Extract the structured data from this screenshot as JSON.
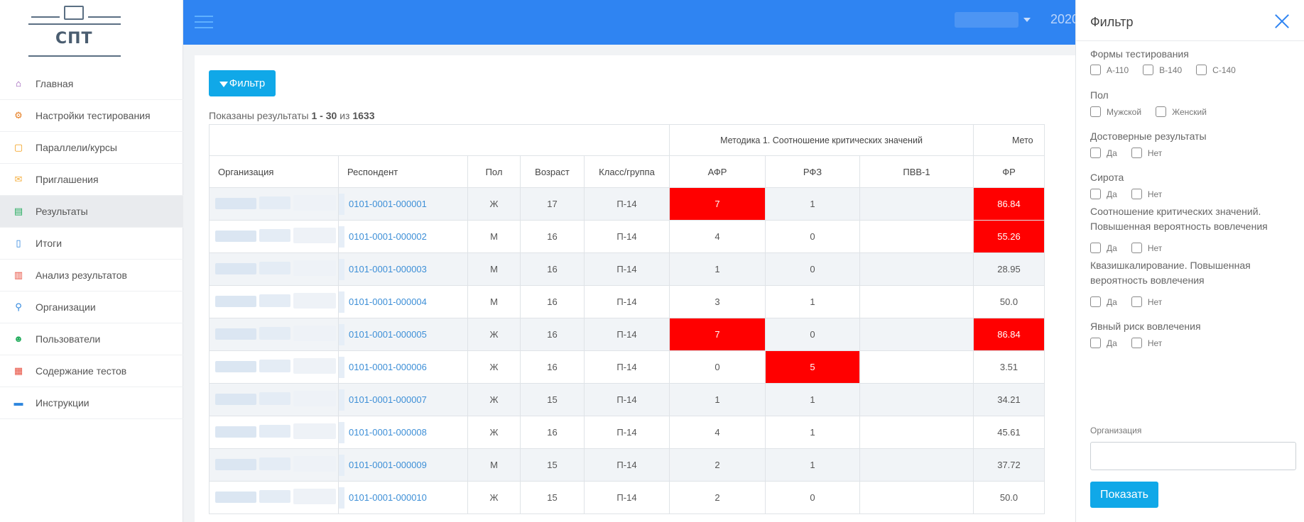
{
  "app": {
    "logo_text": "СПТ",
    "year": "2020"
  },
  "sidebar": {
    "items": [
      {
        "label": "Главная",
        "icon": "home-icon",
        "color": "#8e44ad",
        "glyph": "⌂"
      },
      {
        "label": "Настройки тестирования",
        "icon": "settings-icon",
        "color": "#e67e22",
        "glyph": "⚙"
      },
      {
        "label": "Параллели/курсы",
        "icon": "note-icon",
        "color": "#f39c12",
        "glyph": "▢"
      },
      {
        "label": "Приглашения",
        "icon": "invitation-icon",
        "color": "#f5b041",
        "glyph": "✉"
      },
      {
        "label": "Результаты",
        "icon": "results-icon",
        "color": "#27ae60",
        "glyph": "▤"
      },
      {
        "label": "Итоги",
        "icon": "document-icon",
        "color": "#2e86de",
        "glyph": "▯"
      },
      {
        "label": "Анализ результатов",
        "icon": "analysis-icon",
        "color": "#e74c3c",
        "glyph": "▥"
      },
      {
        "label": "Организации",
        "icon": "organization-icon",
        "color": "#2e86de",
        "glyph": "⚲"
      },
      {
        "label": "Пользователи",
        "icon": "user-icon",
        "color": "#27ae60",
        "glyph": "☻"
      },
      {
        "label": "Содержание тестов",
        "icon": "tests-icon",
        "color": "#e74c3c",
        "glyph": "▦"
      },
      {
        "label": "Инструкции",
        "icon": "book-icon",
        "color": "#2e86de",
        "glyph": "▬"
      }
    ],
    "active_index": 4
  },
  "main": {
    "filter_button": "Фильтр",
    "summary": {
      "prefix": "Показаны результаты",
      "range": "1 - 30",
      "of": "из",
      "total": "1633"
    },
    "table": {
      "group_headers": {
        "method1": "Методика 1. Соотношение критических значений",
        "method2": "Мето"
      },
      "columns": [
        "Организация",
        "Респондент",
        "Пол",
        "Возраст",
        "Класс/группа",
        "АФР",
        "РФЗ",
        "ПВВ-1",
        "ФР"
      ],
      "rows": [
        {
          "respondent": "0101-0001-000001",
          "sex": "Ж",
          "age": "17",
          "group": "П-14",
          "afr": "7",
          "rfz": "1",
          "pvv": "",
          "fr": "86.84",
          "red": [
            "afr",
            "fr"
          ]
        },
        {
          "respondent": "0101-0001-000002",
          "sex": "М",
          "age": "16",
          "group": "П-14",
          "afr": "4",
          "rfz": "0",
          "pvv": "",
          "fr": "55.26",
          "red": [
            "fr"
          ]
        },
        {
          "respondent": "0101-0001-000003",
          "sex": "М",
          "age": "16",
          "group": "П-14",
          "afr": "1",
          "rfz": "0",
          "pvv": "",
          "fr": "28.95",
          "red": []
        },
        {
          "respondent": "0101-0001-000004",
          "sex": "М",
          "age": "16",
          "group": "П-14",
          "afr": "3",
          "rfz": "1",
          "pvv": "",
          "fr": "50.0",
          "red": []
        },
        {
          "respondent": "0101-0001-000005",
          "sex": "Ж",
          "age": "16",
          "group": "П-14",
          "afr": "7",
          "rfz": "0",
          "pvv": "",
          "fr": "86.84",
          "red": [
            "afr",
            "fr"
          ]
        },
        {
          "respondent": "0101-0001-000006",
          "sex": "Ж",
          "age": "16",
          "group": "П-14",
          "afr": "0",
          "rfz": "5",
          "pvv": "",
          "fr": "3.51",
          "red": [
            "rfz"
          ]
        },
        {
          "respondent": "0101-0001-000007",
          "sex": "Ж",
          "age": "15",
          "group": "П-14",
          "afr": "1",
          "rfz": "1",
          "pvv": "",
          "fr": "34.21",
          "red": []
        },
        {
          "respondent": "0101-0001-000008",
          "sex": "Ж",
          "age": "16",
          "group": "П-14",
          "afr": "4",
          "rfz": "1",
          "pvv": "",
          "fr": "45.61",
          "red": []
        },
        {
          "respondent": "0101-0001-000009",
          "sex": "М",
          "age": "15",
          "group": "П-14",
          "afr": "2",
          "rfz": "1",
          "pvv": "",
          "fr": "37.72",
          "red": []
        },
        {
          "respondent": "0101-0001-000010",
          "sex": "Ж",
          "age": "15",
          "group": "П-14",
          "afr": "2",
          "rfz": "0",
          "pvv": "",
          "fr": "50.0",
          "red": []
        }
      ]
    }
  },
  "filter_panel": {
    "title": "Фильтр",
    "sections": [
      {
        "title": "Формы тестирования",
        "options": [
          "А-110",
          "В-140",
          "С-140"
        ]
      },
      {
        "title": "Пол",
        "options": [
          "Мужской",
          "Женский"
        ]
      },
      {
        "title": "Достоверные результаты",
        "options": [
          "Да",
          "Нет"
        ]
      },
      {
        "title": "Сирота",
        "options": [
          "Да",
          "Нет"
        ]
      },
      {
        "title": "Соотношение критических значений. Повышенная вероятность вовлечения",
        "options": [
          "Да",
          "Нет"
        ]
      },
      {
        "title": "Квазишкалирование. Повышенная вероятность вовлечения",
        "options": [
          "Да",
          "Нет"
        ]
      },
      {
        "title": "Явный риск вовлечения",
        "options": [
          "Да",
          "Нет"
        ]
      }
    ],
    "organization_label": "Организация",
    "organization_value": "",
    "show_button": "Показать"
  }
}
